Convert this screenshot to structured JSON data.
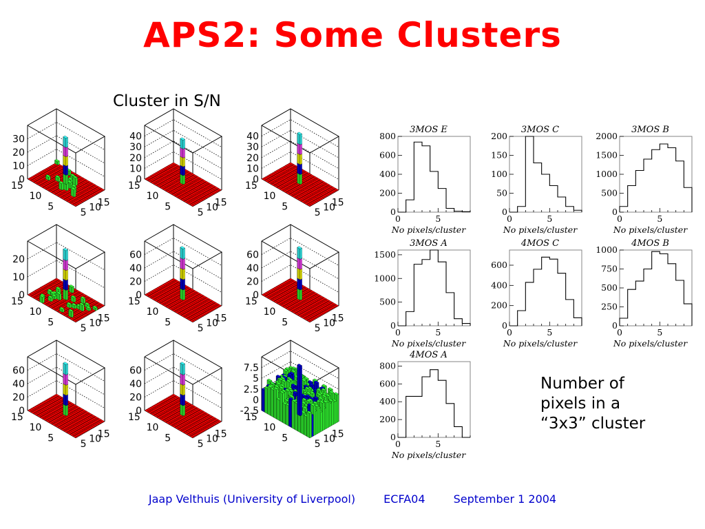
{
  "title": "APS2: Some Clusters",
  "left_caption": "Cluster in S/N",
  "note_lines": [
    "Number of",
    "pixels in a",
    "“3x3” cluster"
  ],
  "footer": {
    "author": "Jaap Velthuis (University of Liverpool)",
    "event": "ECFA04",
    "date": "September 1 2004"
  },
  "colors": {
    "title": "#ff0000",
    "footer": "#0000cc",
    "floor": "#ee0000",
    "peak_segments": [
      "#33ff33",
      "#0000dd",
      "#ffff00",
      "#ff44ff",
      "#33ffff"
    ]
  },
  "chart_data": [
    {
      "type": "lego3d",
      "zticks": [
        "30",
        "20",
        "10",
        "0"
      ],
      "xticks": [
        "5",
        "10",
        "15"
      ],
      "yticks": [
        "15",
        "10",
        "5"
      ],
      "zmax": 35,
      "peak": 30,
      "noise": "low"
    },
    {
      "type": "lego3d",
      "zticks": [
        "40",
        "30",
        "20",
        "10",
        "0"
      ],
      "xticks": [
        "5",
        "10",
        "15"
      ],
      "yticks": [
        "15",
        "10",
        "5"
      ],
      "zmax": 40,
      "peak": 33,
      "noise": "none"
    },
    {
      "type": "lego3d",
      "zticks": [
        "40",
        "30",
        "20",
        "10",
        "0"
      ],
      "xticks": [
        "5",
        "10",
        "15"
      ],
      "yticks": [
        "15",
        "10",
        "5"
      ],
      "zmax": 40,
      "peak": 37,
      "noise": "none"
    },
    {
      "type": "lego3d",
      "zticks": [
        "20",
        "10",
        "0"
      ],
      "xticks": [
        "5",
        "10",
        "15"
      ],
      "yticks": [
        "15",
        "10",
        "5"
      ],
      "zmax": 25,
      "peak": 23,
      "noise": "medium"
    },
    {
      "type": "lego3d",
      "zticks": [
        "60",
        "40",
        "20",
        "0"
      ],
      "xticks": [
        "5",
        "10",
        "15"
      ],
      "yticks": [
        "15",
        "10",
        "5"
      ],
      "zmax": 65,
      "peak": 62,
      "noise": "none"
    },
    {
      "type": "lego3d",
      "zticks": [
        "60",
        "40",
        "20",
        "0"
      ],
      "xticks": [
        "5",
        "10",
        "15"
      ],
      "yticks": [
        "15",
        "10",
        "5"
      ],
      "zmax": 65,
      "peak": 62,
      "noise": "none"
    },
    {
      "type": "lego3d",
      "zticks": [
        "60",
        "40",
        "20",
        "0"
      ],
      "xticks": [
        "5",
        "10",
        "15"
      ],
      "yticks": [
        "15",
        "10",
        "5"
      ],
      "zmax": 65,
      "peak": 62,
      "noise": "none"
    },
    {
      "type": "lego3d",
      "zticks": [
        "60",
        "40",
        "20",
        "0"
      ],
      "xticks": [
        "5",
        "10",
        "15"
      ],
      "yticks": [
        "15",
        "10",
        "5"
      ],
      "zmax": 65,
      "peak": 62,
      "noise": "none"
    },
    {
      "type": "lego3d",
      "zticks": [
        "7.5",
        "5",
        "2.5",
        "0",
        "-2.5"
      ],
      "xticks": [
        "5",
        "10",
        "15"
      ],
      "yticks": [
        "15",
        "10",
        "5"
      ],
      "zmax": 9,
      "zmin": -3.5,
      "peak": 8,
      "noise": "high"
    },
    {
      "type": "bar",
      "title": "3MOS E",
      "xlabel": "No pixels/cluster",
      "ylim": [
        0,
        800
      ],
      "yticks": [
        0,
        200,
        400,
        600,
        800
      ],
      "xticks": [
        0,
        5
      ],
      "xlim": [
        0,
        9
      ],
      "values": [
        0,
        130,
        740,
        700,
        430,
        250,
        40,
        10,
        5
      ]
    },
    {
      "type": "bar",
      "title": "3MOS C",
      "xlabel": "No pixels/cluster",
      "ylim": [
        0,
        200
      ],
      "yticks": [
        0,
        50,
        100,
        150,
        200
      ],
      "xticks": [
        0,
        5
      ],
      "xlim": [
        0,
        9
      ],
      "values": [
        0,
        15,
        200,
        130,
        100,
        70,
        40,
        15,
        5
      ]
    },
    {
      "type": "bar",
      "title": "3MOS B",
      "xlabel": "No pixels/cluster",
      "ylim": [
        0,
        2000
      ],
      "yticks": [
        0,
        500,
        1000,
        1500,
        2000
      ],
      "xticks": [
        0,
        5
      ],
      "xlim": [
        0,
        9
      ],
      "values": [
        150,
        700,
        1100,
        1400,
        1650,
        1800,
        1700,
        1350,
        650
      ]
    },
    {
      "type": "bar",
      "title": "3MOS A",
      "xlabel": "No pixels/cluster",
      "ylim": [
        0,
        1600
      ],
      "yticks": [
        0,
        500,
        1000,
        1500
      ],
      "xticks": [
        0,
        5
      ],
      "xlim": [
        0,
        9
      ],
      "values": [
        0,
        300,
        1300,
        1400,
        1600,
        1350,
        700,
        150,
        50
      ]
    },
    {
      "type": "bar",
      "title": "4MOS C",
      "xlabel": "No pixels/cluster",
      "ylim": [
        0,
        750
      ],
      "yticks": [
        0,
        200,
        400,
        600
      ],
      "xticks": [
        0,
        5
      ],
      "xlim": [
        0,
        9
      ],
      "values": [
        0,
        150,
        430,
        560,
        680,
        660,
        520,
        260,
        80
      ]
    },
    {
      "type": "bar",
      "title": "4MOS B",
      "xlabel": "No pixels/cluster",
      "ylim": [
        0,
        1000
      ],
      "yticks": [
        0,
        250,
        500,
        750,
        1000
      ],
      "xticks": [
        0,
        5
      ],
      "xlim": [
        0,
        9
      ],
      "values": [
        100,
        480,
        590,
        750,
        980,
        950,
        820,
        600,
        290
      ]
    },
    {
      "type": "bar",
      "title": "4MOS A",
      "xlabel": "No pixels/cluster",
      "ylim": [
        0,
        850
      ],
      "yticks": [
        0,
        200,
        400,
        600,
        800
      ],
      "xticks": [
        0,
        5
      ],
      "xlim": [
        0,
        9
      ],
      "values": [
        0,
        460,
        460,
        680,
        760,
        640,
        380,
        120,
        0
      ]
    }
  ]
}
